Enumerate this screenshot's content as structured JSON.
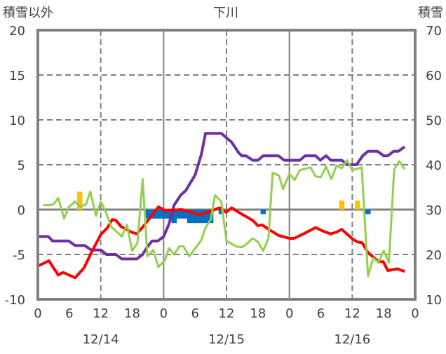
{
  "chart_data": {
    "type": "line",
    "title": "下川",
    "ylabel_left": "積雪以外",
    "ylabel_right": "積雪",
    "ylim_left": [
      -10,
      20
    ],
    "ylim_right": [
      10,
      70
    ],
    "yticks_left": [
      "-10",
      "-5",
      "0",
      "5",
      "10",
      "15",
      "20"
    ],
    "yticks_right": [
      "10",
      "20",
      "30",
      "40",
      "50",
      "60",
      "70"
    ],
    "xlim_hours": [
      0,
      72
    ],
    "xticks": [
      "0",
      "6",
      "12",
      "18",
      "0",
      "6",
      "12",
      "18",
      "0",
      "6",
      "12",
      "18",
      "0"
    ],
    "date_labels": [
      {
        "label": "12/14",
        "hour": 12
      },
      {
        "label": "12/15",
        "hour": 36
      },
      {
        "label": "12/16",
        "hour": 60
      }
    ],
    "grid": true,
    "series": [
      {
        "name": "snow_depth",
        "axis": "right",
        "color": "#7030A0",
        "points": [
          [
            0,
            24
          ],
          [
            2,
            24
          ],
          [
            2.8,
            23
          ],
          [
            5.9,
            23
          ],
          [
            7.1,
            22
          ],
          [
            8.9,
            22
          ],
          [
            10.2,
            21
          ],
          [
            12,
            21
          ],
          [
            13.1,
            20
          ],
          [
            14.9,
            20
          ],
          [
            16,
            19
          ],
          [
            18.9,
            19
          ],
          [
            20,
            20
          ],
          [
            20.9,
            21.7
          ],
          [
            21.8,
            23
          ],
          [
            22.9,
            23
          ],
          [
            24,
            24
          ],
          [
            25,
            26.7
          ],
          [
            26,
            31
          ],
          [
            27.3,
            33.3
          ],
          [
            28.2,
            34.2
          ],
          [
            30,
            37.7
          ],
          [
            31.2,
            42.3
          ],
          [
            32,
            47
          ],
          [
            35,
            47
          ],
          [
            37,
            45
          ],
          [
            38.3,
            42.7
          ],
          [
            38.9,
            42
          ],
          [
            39.7,
            42
          ],
          [
            41,
            41
          ],
          [
            42,
            41
          ],
          [
            43,
            42
          ],
          [
            45.9,
            42
          ],
          [
            47,
            41
          ],
          [
            50,
            41
          ],
          [
            51,
            42
          ],
          [
            53,
            42
          ],
          [
            53.9,
            41
          ],
          [
            55,
            42
          ],
          [
            55.9,
            41
          ],
          [
            58,
            41
          ],
          [
            59,
            40
          ],
          [
            60.8,
            40
          ],
          [
            62,
            42
          ],
          [
            63,
            43
          ],
          [
            64.8,
            43
          ],
          [
            66,
            42
          ],
          [
            66.8,
            42
          ],
          [
            67.9,
            43
          ],
          [
            68.8,
            43
          ],
          [
            70,
            44
          ]
        ]
      },
      {
        "name": "temperature",
        "axis": "left",
        "color": "#FF0000",
        "points": [
          [
            0,
            -6.3
          ],
          [
            2.1,
            -5.7
          ],
          [
            3.9,
            -7.3
          ],
          [
            4.8,
            -7.0
          ],
          [
            7.1,
            -7.6
          ],
          [
            8.8,
            -6.5
          ],
          [
            10.2,
            -4.8
          ],
          [
            12,
            -2.8
          ],
          [
            13.3,
            -2.0
          ],
          [
            14.2,
            -1.1
          ],
          [
            14.9,
            -1.2
          ],
          [
            15.9,
            -1.9
          ],
          [
            17.8,
            -2.5
          ],
          [
            18.9,
            -2.7
          ],
          [
            20.5,
            -1.6
          ],
          [
            21.8,
            -0.6
          ],
          [
            23,
            0.3
          ],
          [
            24.3,
            -0.1
          ],
          [
            27.5,
            0
          ],
          [
            29.3,
            -0.3
          ],
          [
            31,
            -0.6
          ],
          [
            33.3,
            -0.1
          ],
          [
            34.7,
            0.2
          ],
          [
            35.9,
            -0.3
          ],
          [
            37,
            0.2
          ],
          [
            38.3,
            -0.3
          ],
          [
            41,
            -1.2
          ],
          [
            42,
            -1.8
          ],
          [
            42.8,
            -1.7
          ],
          [
            44.3,
            -2.3
          ],
          [
            46,
            -2.9
          ],
          [
            48,
            -3.2
          ],
          [
            48.9,
            -3.2
          ],
          [
            50.7,
            -2.7
          ],
          [
            53,
            -2.0
          ],
          [
            54.4,
            -2.4
          ],
          [
            55.9,
            -2.7
          ],
          [
            57,
            -2.5
          ],
          [
            58,
            -2.2
          ],
          [
            60.1,
            -3.3
          ],
          [
            61,
            -3.6
          ],
          [
            61.9,
            -3.7
          ],
          [
            63,
            -4.8
          ],
          [
            65,
            -5.8
          ],
          [
            65.9,
            -5.8
          ],
          [
            66.8,
            -6.8
          ],
          [
            68.6,
            -6.6
          ],
          [
            70,
            -6.9
          ]
        ]
      },
      {
        "name": "other",
        "axis": "left",
        "color": "#92D050",
        "points": [
          [
            1,
            0.5
          ],
          [
            2.2,
            0.5
          ],
          [
            3,
            0.6
          ],
          [
            3.9,
            1.3
          ],
          [
            5,
            -1
          ],
          [
            5.9,
            0.3
          ],
          [
            7.1,
            0.9
          ],
          [
            8,
            0.3
          ],
          [
            9.2,
            0.6
          ],
          [
            10,
            2
          ],
          [
            11.1,
            -0.7
          ],
          [
            12,
            0.9
          ],
          [
            12.8,
            0
          ],
          [
            14,
            -1.9
          ],
          [
            16,
            -3
          ],
          [
            17,
            -1.7
          ],
          [
            18,
            -4.6
          ],
          [
            19,
            -3.7
          ],
          [
            20,
            3.4
          ],
          [
            20.9,
            -5.2
          ],
          [
            22,
            -4.5
          ],
          [
            23,
            -6.4
          ],
          [
            24.3,
            -5.6
          ],
          [
            25,
            -4.3
          ],
          [
            26,
            -5
          ],
          [
            27,
            -4.1
          ],
          [
            27.8,
            -4.1
          ],
          [
            28.9,
            -5.2
          ],
          [
            31.2,
            -3.4
          ],
          [
            32,
            -2
          ],
          [
            33,
            -1.1
          ],
          [
            33.8,
            1.6
          ],
          [
            35,
            0.9
          ],
          [
            36,
            -3.5
          ],
          [
            37.9,
            -4.1
          ],
          [
            38.9,
            -4.2
          ],
          [
            39.7,
            -3.9
          ],
          [
            41,
            -3.2
          ],
          [
            42,
            -3.6
          ],
          [
            43,
            -4.6
          ],
          [
            44,
            -3.2
          ],
          [
            44.8,
            4.1
          ],
          [
            46,
            3.8
          ],
          [
            46.8,
            2.3
          ],
          [
            48,
            4
          ],
          [
            49,
            3.3
          ],
          [
            50,
            4.4
          ],
          [
            52,
            4.7
          ],
          [
            53,
            3.7
          ],
          [
            54,
            3.6
          ],
          [
            55,
            4.8
          ],
          [
            56,
            3.4
          ],
          [
            57,
            4.9
          ],
          [
            58,
            4.6
          ],
          [
            59,
            5.5
          ],
          [
            60,
            4.4
          ],
          [
            61.8,
            4.7
          ],
          [
            63,
            -7.4
          ],
          [
            64,
            -5.4
          ],
          [
            65,
            -5.9
          ],
          [
            66,
            -4.6
          ],
          [
            67,
            -5.9
          ],
          [
            68,
            4.5
          ],
          [
            69,
            5.4
          ],
          [
            70,
            4.5
          ]
        ]
      }
    ],
    "bars": [
      {
        "name": "snow_change_negative",
        "axis": "left",
        "color": "#0070C0",
        "points": [
          [
            21,
            -1
          ],
          [
            22,
            -1
          ],
          [
            23,
            -1
          ],
          [
            24,
            -1
          ],
          [
            25,
            -1
          ],
          [
            26,
            -1.5
          ],
          [
            27,
            -1
          ],
          [
            28,
            -1
          ],
          [
            29,
            -1.5
          ],
          [
            30,
            -1.5
          ],
          [
            31,
            -1.5
          ],
          [
            32,
            -1.5
          ],
          [
            33,
            -1.5
          ],
          [
            35,
            -0.5
          ],
          [
            43,
            -0.5
          ],
          [
            63,
            -0.5
          ]
        ]
      },
      {
        "name": "snow_change_positive",
        "axis": "left",
        "color": "#FFC000",
        "points": [
          [
            8,
            2
          ],
          [
            58,
            1
          ],
          [
            61,
            1
          ]
        ]
      }
    ]
  }
}
